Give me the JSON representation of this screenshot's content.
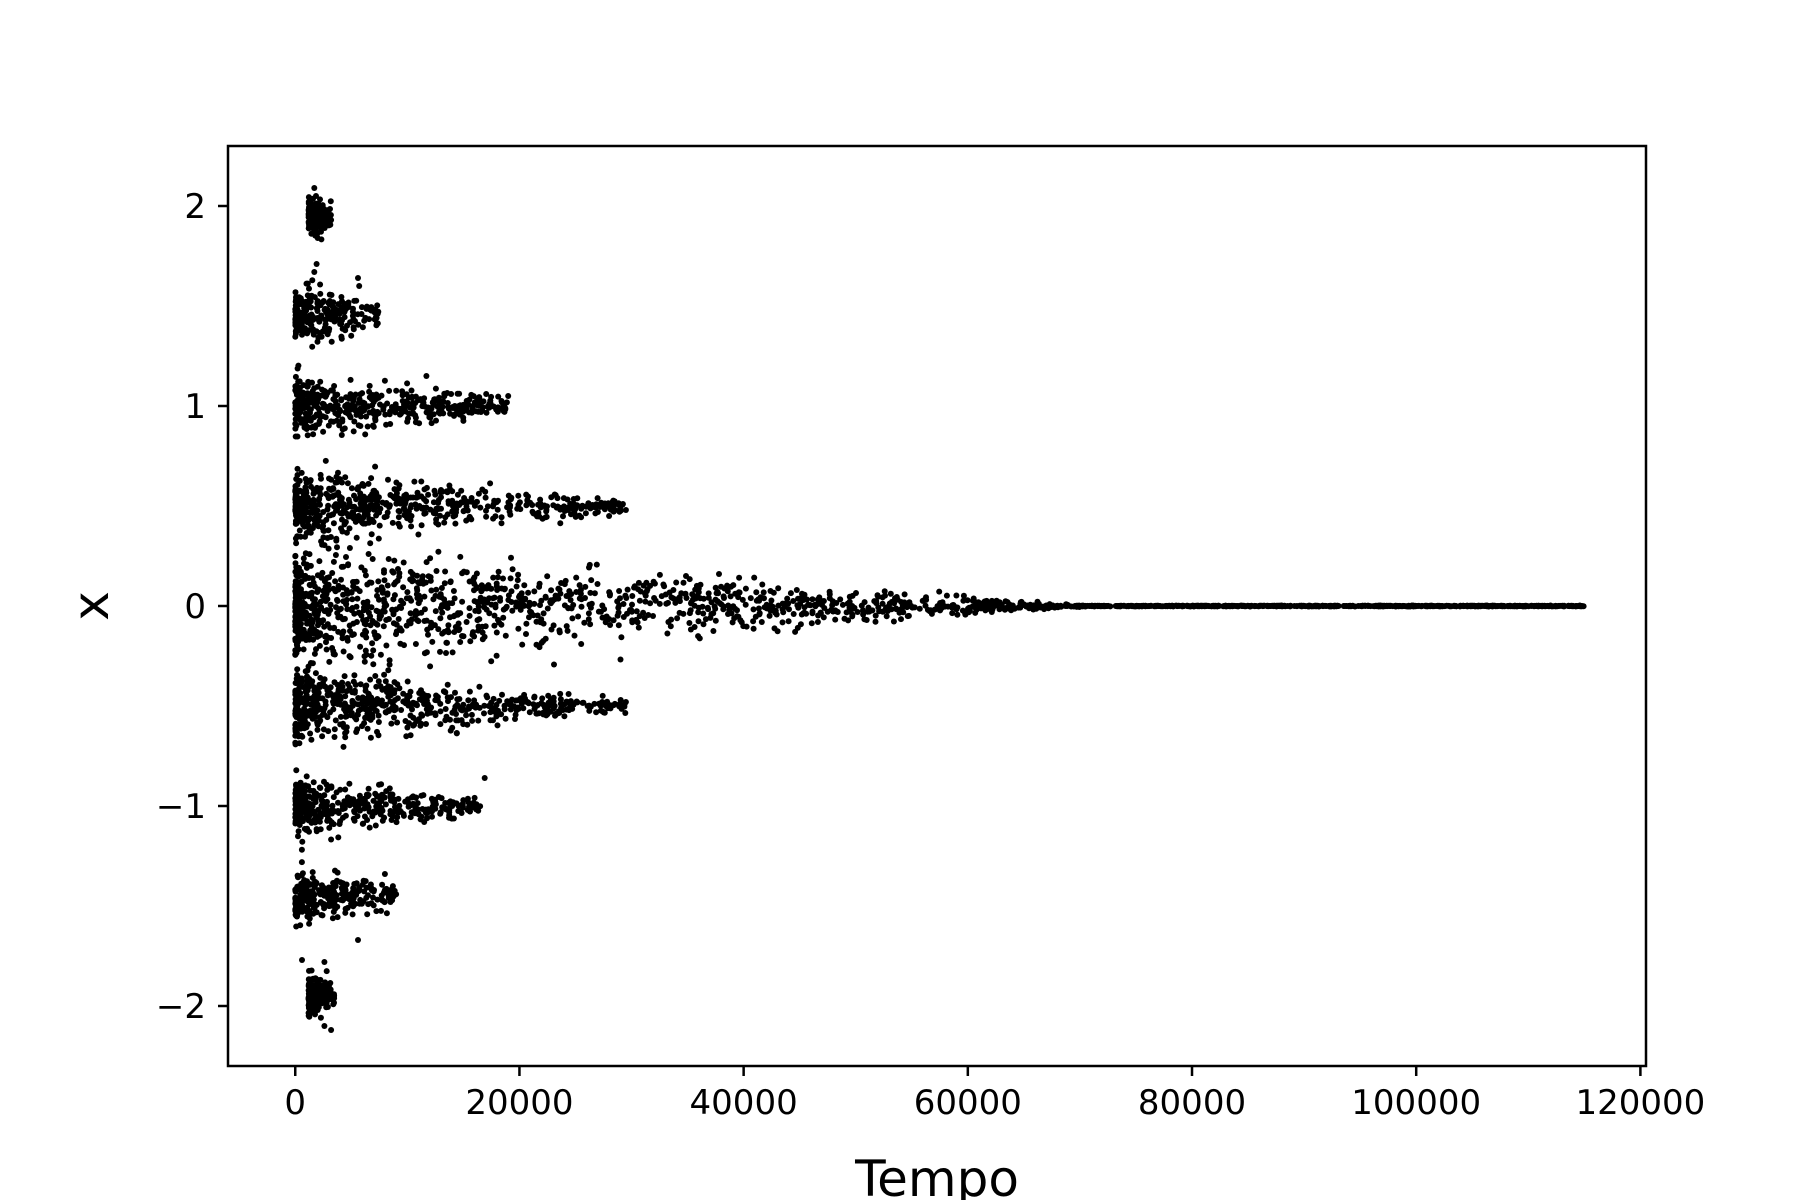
{
  "chart_data": {
    "type": "scatter",
    "title": "",
    "xlabel": "Tempo",
    "ylabel": "x",
    "xlim": [
      -6000,
      120500
    ],
    "ylim": [
      -2.3,
      2.3
    ],
    "grid": false,
    "legend": "none",
    "marker_color": "#000000",
    "x_ticks": [
      {
        "value": 0,
        "label": "0"
      },
      {
        "value": 20000,
        "label": "20000"
      },
      {
        "value": 40000,
        "label": "40000"
      },
      {
        "value": 60000,
        "label": "60000"
      },
      {
        "value": 80000,
        "label": "80000"
      },
      {
        "value": 100000,
        "label": "100000"
      },
      {
        "value": 120000,
        "label": "120000"
      }
    ],
    "y_ticks": [
      {
        "value": 2,
        "label": "2"
      },
      {
        "value": 1,
        "label": "1"
      },
      {
        "value": 0,
        "label": "0"
      },
      {
        "value": -1,
        "label": "−1"
      },
      {
        "value": -2,
        "label": "−2"
      }
    ],
    "clusters": [
      {
        "level": 0,
        "x_range": [
          0,
          70000
        ],
        "spread_start": 0.28,
        "spread_end": 0.004
      },
      {
        "level": 0,
        "x_range": [
          70000,
          115000
        ],
        "spread_start": 0.002,
        "spread_end": 0.002
      },
      {
        "level": 0.5,
        "x_range": [
          0,
          29500
        ],
        "spread_start": 0.17,
        "spread_end": 0.03
      },
      {
        "level": -0.5,
        "x_range": [
          0,
          29500
        ],
        "spread_start": 0.17,
        "spread_end": 0.03
      },
      {
        "level": 1,
        "x_range": [
          0,
          19000
        ],
        "spread_start": 0.14,
        "spread_end": 0.04
      },
      {
        "level": -1,
        "x_range": [
          0,
          16500
        ],
        "spread_start": 0.14,
        "spread_end": 0.04
      },
      {
        "level": 1.45,
        "x_range": [
          0,
          7500
        ],
        "spread_start": 0.13,
        "spread_end": 0.07
      },
      {
        "level": -1.45,
        "x_range": [
          0,
          9000
        ],
        "spread_start": 0.13,
        "spread_end": 0.07
      },
      {
        "level": 1.95,
        "x_range": [
          1200,
          3200
        ],
        "spread_start": 0.1,
        "spread_end": 0.06
      },
      {
        "level": -1.95,
        "x_range": [
          1200,
          3500
        ],
        "spread_start": 0.1,
        "spread_end": 0.06
      }
    ],
    "points": [
      [
        1700,
        2.09
      ],
      [
        1850,
        2.05
      ],
      [
        1900,
        1.98
      ],
      [
        1600,
        1.95
      ],
      [
        3200,
        1.93
      ],
      [
        1950,
        1.86
      ],
      [
        2000,
        1.84
      ],
      [
        1900,
        1.71
      ],
      [
        1700,
        1.67
      ],
      [
        5600,
        1.64
      ],
      [
        5700,
        1.6
      ],
      [
        19000,
        1.05
      ],
      [
        11700,
        1.15
      ],
      [
        13900,
        1.06
      ],
      [
        16100,
        1.01
      ],
      [
        14900,
        0.98
      ],
      [
        12100,
        0.99
      ],
      [
        29500,
        0.48
      ],
      [
        28000,
        0.45
      ],
      [
        27000,
        0.47
      ],
      [
        29500,
        -0.48
      ],
      [
        28000,
        -0.5
      ],
      [
        16900,
        -0.86
      ],
      [
        16100,
        -1.01
      ],
      [
        15900,
        -0.99
      ],
      [
        14000,
        -1.0
      ],
      [
        11500,
        -1.08
      ],
      [
        8000,
        -1.34
      ],
      [
        8500,
        -1.48
      ],
      [
        5600,
        -1.67
      ],
      [
        2600,
        -1.78
      ],
      [
        2300,
        -1.9
      ],
      [
        3000,
        -1.9
      ],
      [
        2000,
        -2.02
      ],
      [
        3200,
        -2.12
      ],
      [
        2600,
        -2.1
      ],
      [
        600,
        -1.77
      ]
    ]
  }
}
